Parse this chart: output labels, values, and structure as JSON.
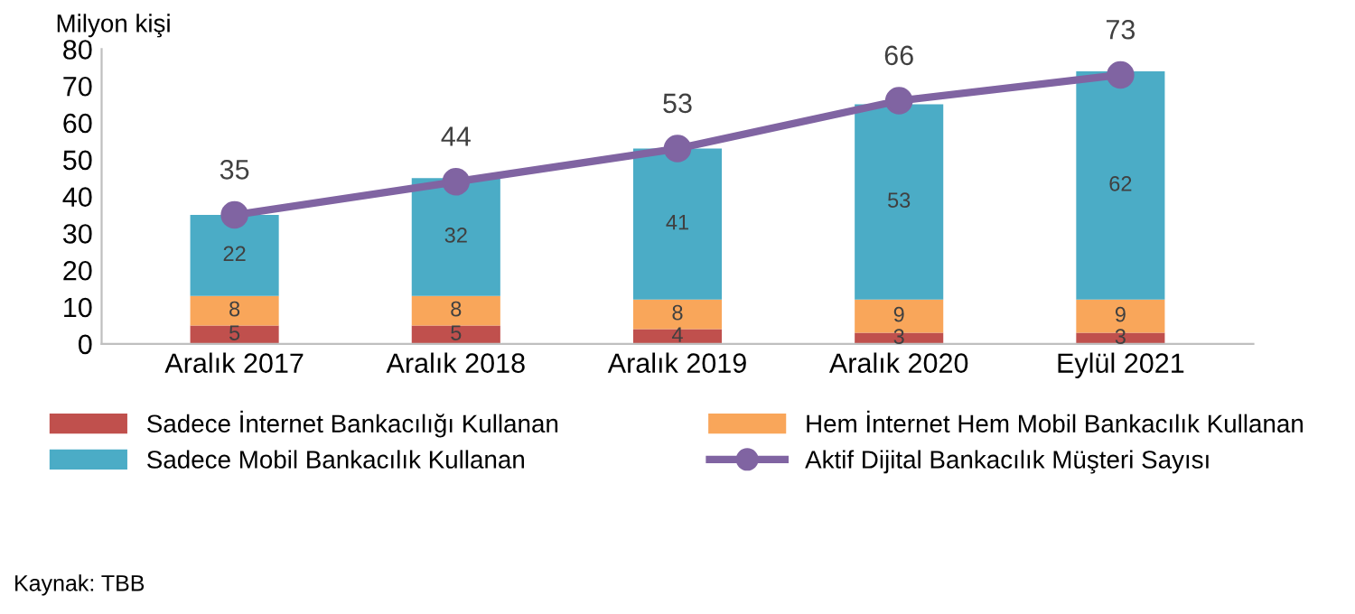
{
  "chart_data": {
    "type": "bar",
    "stacked": true,
    "ylabel": "Milyon kişi",
    "categories": [
      "Aralık 2017",
      "Aralık 2018",
      "Aralık 2019",
      "Aralık 2020",
      "Eylül 2021"
    ],
    "series": [
      {
        "name": "Sadece İnternet Bankacılığı Kullanan",
        "color": "#c0504d",
        "values": [
          5,
          5,
          4,
          3,
          3
        ]
      },
      {
        "name": "Hem İnternet Hem Mobil Bankacılık Kullanan",
        "color": "#f9a65a",
        "values": [
          8,
          8,
          8,
          9,
          9
        ]
      },
      {
        "name": "Sadece Mobil Bankacılık Kullanan",
        "color": "#4bacc6",
        "values": [
          22,
          32,
          41,
          53,
          62
        ]
      },
      {
        "name": "Aktif Dijital Bankacılık Müşteri Sayısı",
        "type": "line",
        "color": "#8064a2",
        "values": [
          35,
          44,
          53,
          66,
          73
        ],
        "marker": "circle"
      }
    ],
    "ylim": [
      0,
      80
    ],
    "yticks": [
      0,
      10,
      20,
      30,
      40,
      50,
      60,
      70,
      80
    ],
    "grid": false,
    "legend": "bottom",
    "data_labels": true,
    "annotations": [
      "Kaynak: TBB"
    ]
  }
}
